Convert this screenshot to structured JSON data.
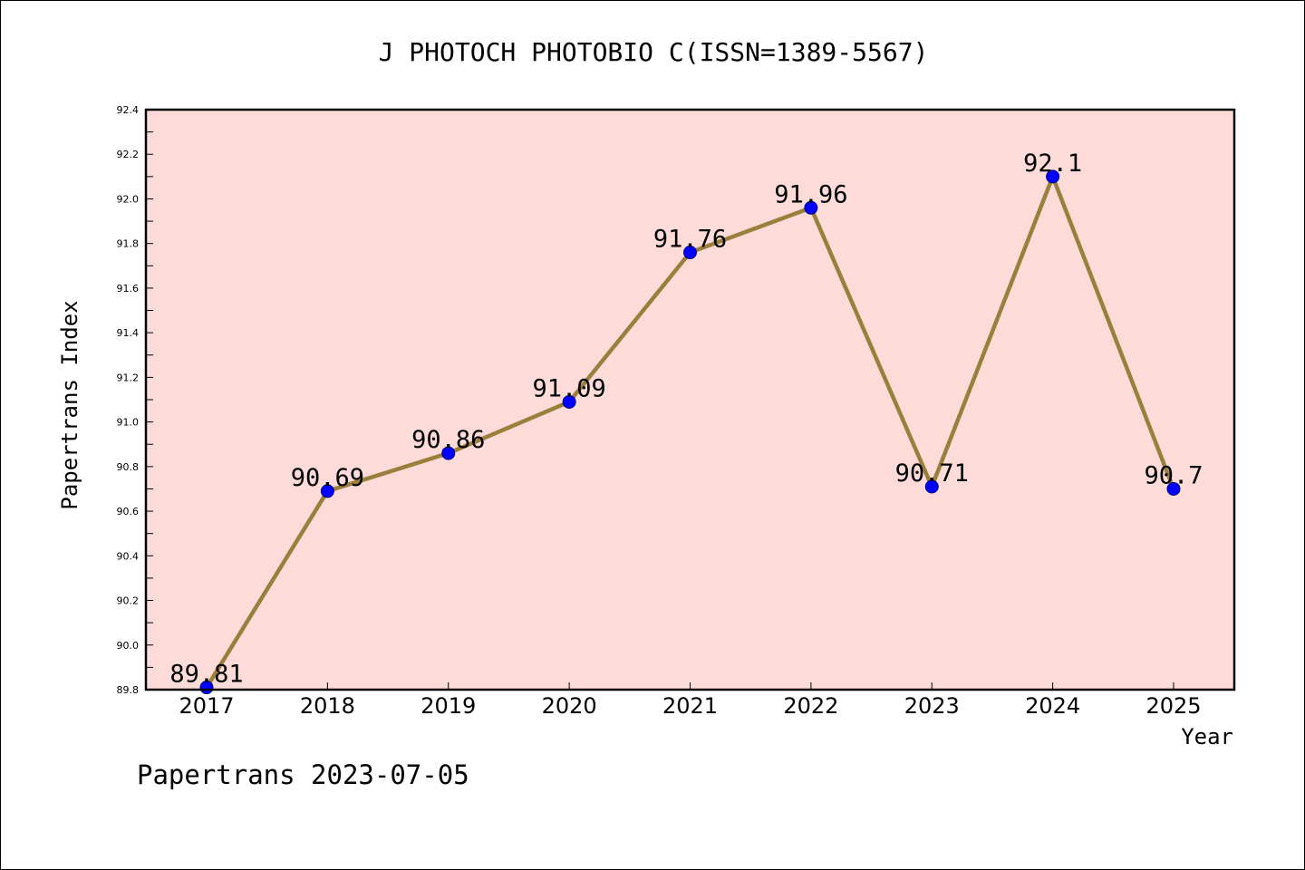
{
  "chart_data": {
    "type": "line",
    "title": "J PHOTOCH PHOTOBIO C(ISSN=1389-5567)",
    "xlabel": "Year",
    "ylabel": "Papertrans Index",
    "categories": [
      "2017",
      "2018",
      "2019",
      "2020",
      "2021",
      "2022",
      "2023",
      "2024",
      "2025"
    ],
    "series": [
      {
        "values": [
          89.81,
          90.69,
          90.86,
          91.09,
          91.76,
          91.96,
          90.71,
          92.1,
          90.7
        ],
        "labels": [
          "89.81",
          "90.69",
          "90.86",
          "91.09",
          "91.76",
          "91.96",
          "90.71",
          "92.1",
          "90.7"
        ]
      }
    ],
    "ylim": [
      89.8,
      92.4
    ],
    "yticks": [
      "89.8",
      "90.0",
      "90.2",
      "90.4",
      "90.6",
      "90.8",
      "91.0",
      "91.2",
      "91.4",
      "91.6",
      "91.8",
      "92.0",
      "92.2",
      "92.4"
    ],
    "grid": false,
    "legend": "none",
    "footer": "Papertrans 2023-07-05",
    "colors": {
      "plot_background": "#fddbd8",
      "line": "#9a7f3c",
      "marker": "#0000ff",
      "marker_edge": "#000080",
      "frame": "#000000"
    }
  }
}
